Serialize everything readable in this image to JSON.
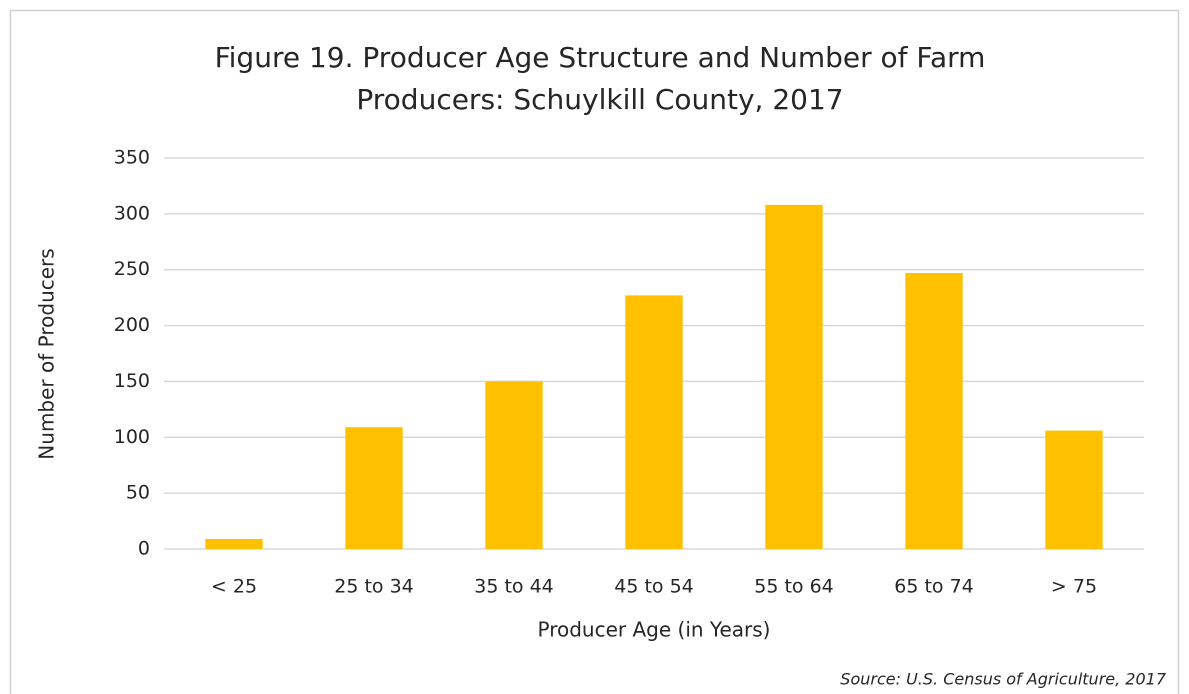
{
  "chart_data": {
    "type": "bar",
    "title": [
      "Figure 19. Producer Age Structure and Number of Farm",
      "Producers: Schuylkill County, 2017"
    ],
    "x_label": "Producer Age (in Years)",
    "y_label": "Number of Producers",
    "source": "Source: U.S. Census of Agriculture, 2017",
    "categories": [
      "< 25",
      "25 to 34",
      "35 to 44",
      "45 to 54",
      "55 to 64",
      "65 to 74",
      "> 75"
    ],
    "values": [
      9,
      109,
      150,
      227,
      308,
      247,
      106
    ],
    "color": "#ffc000",
    "ylim": [
      0,
      350
    ],
    "yticks": [
      0,
      50,
      100,
      150,
      200,
      250,
      300,
      350
    ],
    "grid": true
  }
}
